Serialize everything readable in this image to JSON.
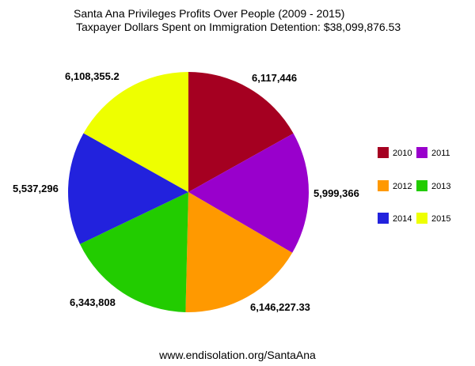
{
  "title": {
    "line1": "Santa Ana Privileges Profits Over People (2009 - 2015)",
    "line2": "Taxpayer Dollars Spent on Immigration Detention: $38,099,876.53"
  },
  "footer": "www.endisolation.org/SantaAna",
  "chart_data": {
    "type": "pie",
    "title": "Santa Ana Privileges Profits Over People (2009 - 2015)",
    "subtitle": "Taxpayer Dollars Spent on Immigration Detention: $38,099,876.53",
    "legend_position": "right",
    "start": "12 o'clock",
    "direction": "clockwise",
    "slices": [
      {
        "name": "2010",
        "value": 6117446,
        "label": "6,117,446",
        "color": "#a50021"
      },
      {
        "name": "2011",
        "value": 5999366,
        "label": "5,999,366",
        "color": "#9900cc"
      },
      {
        "name": "2012",
        "value": 6146227.33,
        "label": "6,146,227.33",
        "color": "#ff9900"
      },
      {
        "name": "2013",
        "value": 6343808,
        "label": "6,343,808",
        "color": "#22cc00"
      },
      {
        "name": "2014",
        "value": 5537296,
        "label": "5,537,296",
        "color": "#2222dd"
      },
      {
        "name": "2015",
        "value": 6108355.2,
        "label": "6,108,355.2",
        "color": "#eeff00"
      }
    ]
  }
}
